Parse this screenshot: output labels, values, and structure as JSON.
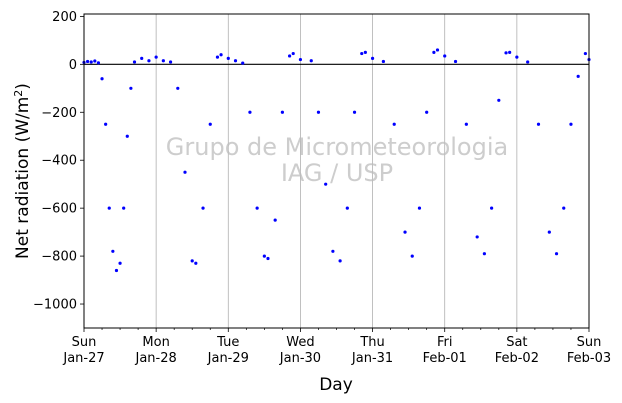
{
  "chart_data": {
    "type": "scatter",
    "title": "",
    "xlabel": "Day",
    "ylabel": "Net radiation (W/m",
    "ylabel_superscript": "2",
    "ylabel_close": ")",
    "ylim": [
      -1100,
      210
    ],
    "y_ticks": [
      200,
      0,
      -200,
      -400,
      -600,
      -800,
      -1000
    ],
    "xlim_days": [
      0,
      7
    ],
    "x_ticks": [
      {
        "day": 0,
        "line1": "Sun",
        "line2": "Jan-27"
      },
      {
        "day": 1,
        "line1": "Mon",
        "line2": "Jan-28"
      },
      {
        "day": 2,
        "line1": "Tue",
        "line2": "Jan-29"
      },
      {
        "day": 3,
        "line1": "Wed",
        "line2": "Jan-30"
      },
      {
        "day": 4,
        "line1": "Thu",
        "line2": "Jan-31"
      },
      {
        "day": 5,
        "line1": "Fri",
        "line2": "Feb-01"
      },
      {
        "day": 6,
        "line1": "Sat",
        "line2": "Feb-02"
      },
      {
        "day": 7,
        "line1": "Sun",
        "line2": "Feb-03"
      }
    ],
    "grid": "vertical-major",
    "zero_line": 0,
    "marker_color": "#0000ff",
    "watermark": {
      "line1": "Grupo de Micrometeorologia",
      "line2": "IAG / USP"
    },
    "series": [
      {
        "points": [
          [
            0.0,
            8
          ],
          [
            0.05,
            12
          ],
          [
            0.1,
            10
          ],
          [
            0.15,
            14
          ],
          [
            0.2,
            6
          ],
          [
            0.25,
            -60
          ],
          [
            0.3,
            -250
          ],
          [
            0.35,
            -600
          ],
          [
            0.4,
            -780
          ],
          [
            0.45,
            -860
          ],
          [
            0.5,
            -830
          ],
          [
            0.55,
            -600
          ],
          [
            0.6,
            -300
          ],
          [
            0.65,
            -100
          ],
          [
            0.7,
            10
          ],
          [
            0.8,
            25
          ],
          [
            0.9,
            15
          ],
          [
            1.0,
            30
          ],
          [
            1.1,
            15
          ],
          [
            1.2,
            10
          ],
          [
            1.3,
            -100
          ],
          [
            1.4,
            -450
          ],
          [
            1.5,
            -820
          ],
          [
            1.55,
            -830
          ],
          [
            1.65,
            -600
          ],
          [
            1.75,
            -250
          ],
          [
            1.85,
            30
          ],
          [
            1.9,
            40
          ],
          [
            2.0,
            25
          ],
          [
            2.1,
            15
          ],
          [
            2.2,
            5
          ],
          [
            2.3,
            -200
          ],
          [
            2.4,
            -600
          ],
          [
            2.5,
            -800
          ],
          [
            2.55,
            -810
          ],
          [
            2.65,
            -650
          ],
          [
            2.75,
            -200
          ],
          [
            2.85,
            35
          ],
          [
            2.9,
            45
          ],
          [
            3.0,
            20
          ],
          [
            3.15,
            15
          ],
          [
            3.25,
            -200
          ],
          [
            3.35,
            -500
          ],
          [
            3.45,
            -780
          ],
          [
            3.55,
            -820
          ],
          [
            3.65,
            -600
          ],
          [
            3.75,
            -200
          ],
          [
            3.85,
            45
          ],
          [
            3.9,
            50
          ],
          [
            4.0,
            25
          ],
          [
            4.15,
            12
          ],
          [
            4.3,
            -250
          ],
          [
            4.45,
            -700
          ],
          [
            4.55,
            -800
          ],
          [
            4.65,
            -600
          ],
          [
            4.75,
            -200
          ],
          [
            4.85,
            50
          ],
          [
            4.9,
            60
          ],
          [
            5.0,
            35
          ],
          [
            5.15,
            12
          ],
          [
            5.3,
            -250
          ],
          [
            5.45,
            -720
          ],
          [
            5.55,
            -790
          ],
          [
            5.65,
            -600
          ],
          [
            5.75,
            -150
          ],
          [
            5.85,
            48
          ],
          [
            5.9,
            50
          ],
          [
            6.0,
            30
          ],
          [
            6.15,
            10
          ],
          [
            6.3,
            -250
          ],
          [
            6.45,
            -700
          ],
          [
            6.55,
            -790
          ],
          [
            6.65,
            -600
          ],
          [
            6.75,
            -250
          ],
          [
            6.85,
            -50
          ],
          [
            6.95,
            45
          ],
          [
            7.0,
            20
          ]
        ]
      }
    ]
  }
}
